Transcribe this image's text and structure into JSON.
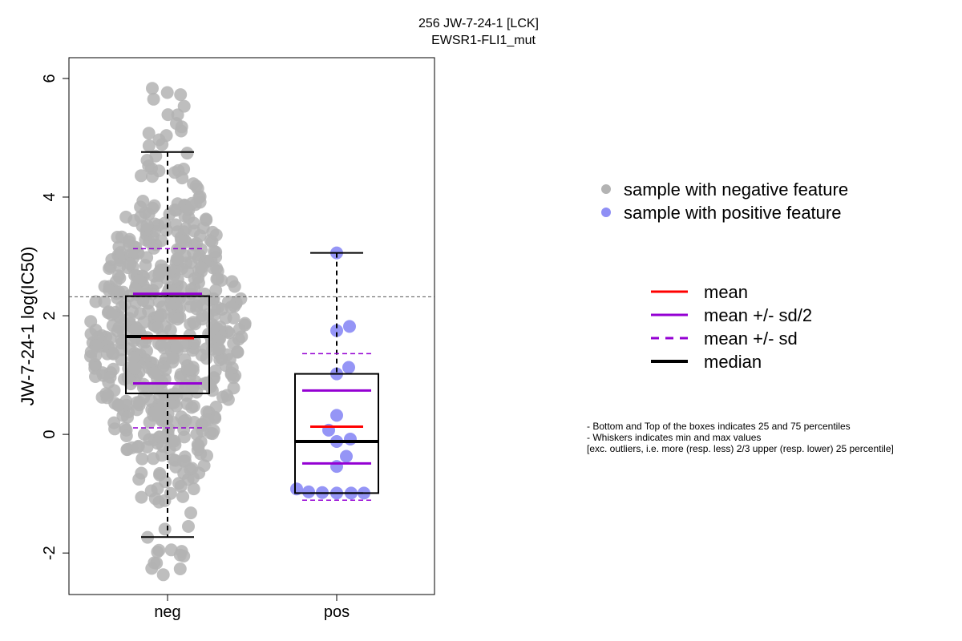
{
  "chart_data": {
    "type": "box",
    "title": "256 JW-7-24-1 [LCK]",
    "subtitle": "EWSR1-FLI1_mut",
    "xlabel": "",
    "ylabel": "JW-7-24-1 log(IC50)",
    "categories": [
      "neg",
      "pos"
    ],
    "yticks": [
      "-2",
      "0",
      "2",
      "4",
      "6"
    ],
    "ylim": [
      -2.7,
      6.35
    ],
    "reference_line_y": 2.32,
    "boxes": [
      {
        "category": "neg",
        "min": -1.73,
        "q1": 0.69,
        "median": 1.65,
        "q3": 2.33,
        "max": 4.76,
        "mean": 1.62,
        "mean_plus_half_sd": 2.37,
        "mean_minus_half_sd": 0.86,
        "mean_plus_sd": 3.13,
        "mean_minus_sd": 0.11
      },
      {
        "category": "pos",
        "min": -0.99,
        "q1": -0.99,
        "median": -0.12,
        "q3": 1.02,
        "max": 3.06,
        "mean": 0.13,
        "mean_plus_half_sd": 0.74,
        "mean_minus_half_sd": -0.49,
        "mean_plus_sd": 1.36,
        "mean_minus_sd": -1.11
      }
    ],
    "points_pos": [
      3.06,
      1.82,
      1.75,
      1.13,
      1.02,
      0.32,
      0.07,
      -0.08,
      -0.12,
      -0.37,
      -0.54,
      -0.92,
      -0.97,
      -0.98,
      -0.99,
      -0.99,
      -0.99
    ],
    "n_neg_points_approx": 620,
    "colors": {
      "negative_points": "#b3b3b3",
      "positive_points": "#8f8ff5",
      "mean": "#ff0000",
      "sd": "#9400d3",
      "median": "#000000"
    },
    "legend_points": [
      {
        "label": "sample with negative feature",
        "color": "#b3b3b3"
      },
      {
        "label": "sample with positive feature",
        "color": "#8f8ff5"
      }
    ],
    "legend_lines": [
      {
        "label": "mean",
        "color": "#ff0000",
        "style": "solid"
      },
      {
        "label": "mean +/- sd/2",
        "color": "#9400d3",
        "style": "solid"
      },
      {
        "label": "mean +/- sd",
        "color": "#9400d3",
        "style": "dashed"
      },
      {
        "label": "median",
        "color": "#000000",
        "style": "thick"
      }
    ],
    "notes": [
      "- Bottom and Top of the boxes indicates 25 and 75 percentiles",
      "- Whiskers indicates min and max values",
      "[exc. outliers, i.e. more (resp. less) 2/3 upper (resp. lower) 25 percentile]"
    ]
  }
}
